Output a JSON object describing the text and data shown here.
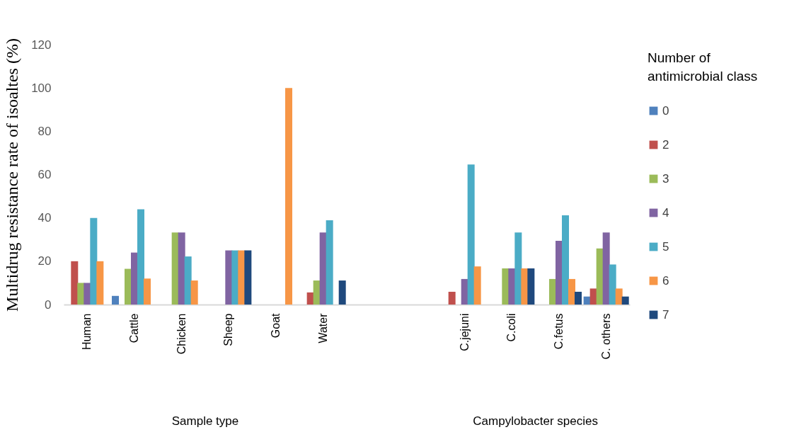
{
  "chart_data": {
    "type": "bar",
    "ylabel": "Multidrug resistance rate of isoaltes  (%)",
    "legend_title": "Number of antimicrobial class",
    "categories": [
      "Human",
      "Cattle",
      "Chicken",
      "Sheep",
      "Goat",
      "Water",
      null,
      null,
      "C.jejuni",
      "C.coli",
      "C.fetus",
      "C. others"
    ],
    "series": [
      {
        "name": "0",
        "color": "#4f81bd",
        "values": [
          null,
          4,
          null,
          null,
          null,
          null,
          null,
          null,
          null,
          null,
          null,
          3.7
        ]
      },
      {
        "name": "2",
        "color": "#c0504d",
        "values": [
          20,
          null,
          null,
          null,
          null,
          5.6,
          null,
          null,
          5.9,
          null,
          null,
          7.4
        ]
      },
      {
        "name": "3",
        "color": "#9bbb59",
        "values": [
          10,
          16.5,
          33.3,
          null,
          null,
          11.1,
          null,
          null,
          null,
          16.7,
          11.8,
          25.9
        ]
      },
      {
        "name": "4",
        "color": "#8064a2",
        "values": [
          10,
          24,
          33.3,
          25,
          null,
          33.3,
          null,
          null,
          11.8,
          16.7,
          29.4,
          33.3
        ]
      },
      {
        "name": "5",
        "color": "#4bacc6",
        "values": [
          40,
          44,
          22.2,
          25,
          null,
          38.9,
          null,
          null,
          64.7,
          33.3,
          41.2,
          18.5
        ]
      },
      {
        "name": "6",
        "color": "#f79646",
        "values": [
          20,
          12,
          11.1,
          25,
          100,
          null,
          null,
          null,
          17.6,
          16.7,
          11.8,
          7.4
        ]
      },
      {
        "name": "7",
        "color": "#1f497d",
        "values": [
          null,
          null,
          null,
          25,
          null,
          11.1,
          null,
          null,
          null,
          16.7,
          5.9,
          3.7
        ]
      }
    ],
    "ylim": [
      0,
      120
    ],
    "yticks": [
      0,
      20,
      40,
      60,
      80,
      100,
      120
    ],
    "grid": false,
    "legend": "right",
    "annotations": [
      "Sample type",
      "Campylobacter species"
    ]
  }
}
